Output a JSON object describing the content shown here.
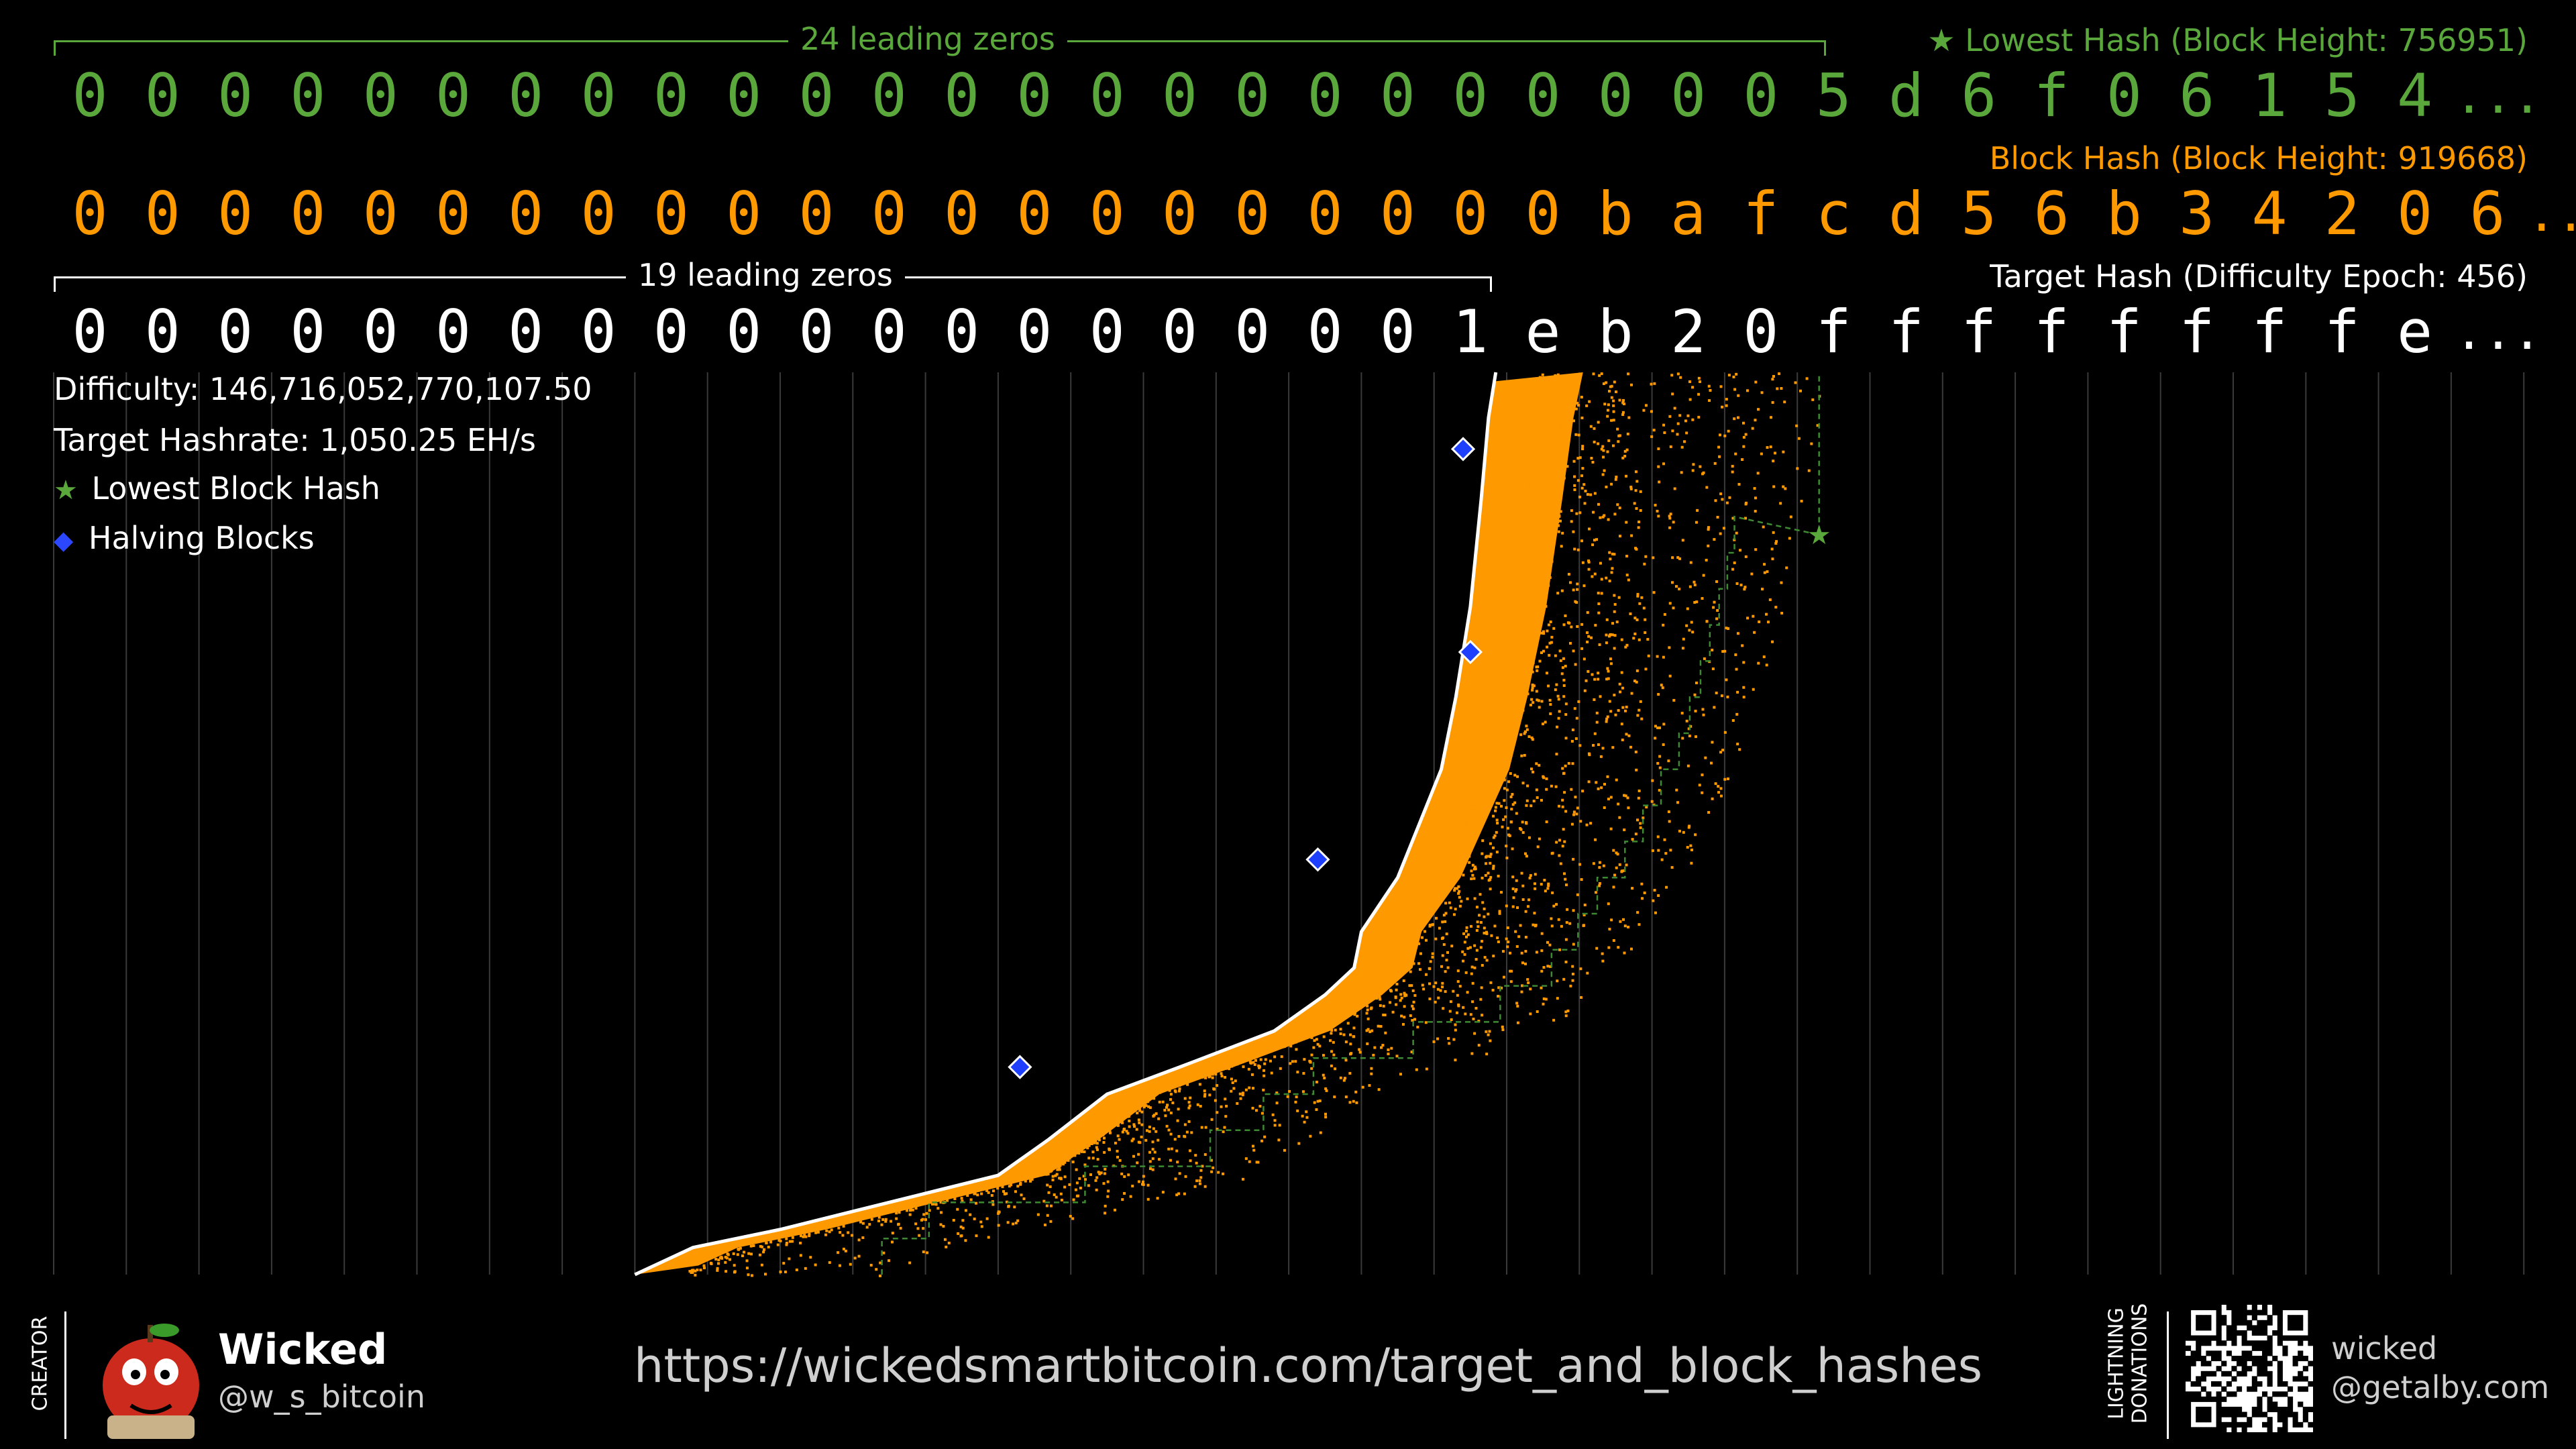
{
  "lowest_hash": {
    "caption": "★ Lowest Hash (Block Height: 756951)",
    "chars": [
      "0",
      "0",
      "0",
      "0",
      "0",
      "0",
      "0",
      "0",
      "0",
      "0",
      "0",
      "0",
      "0",
      "0",
      "0",
      "0",
      "0",
      "0",
      "0",
      "0",
      "0",
      "0",
      "0",
      "0",
      "5",
      "d",
      "6",
      "f",
      "0",
      "6",
      "1",
      "5",
      "4",
      "..."
    ],
    "bracket_label": "24 leading zeros",
    "color": "#5aa83c"
  },
  "block_hash": {
    "caption": "Block Hash (Block Height: 919668)",
    "chars": [
      "0",
      "0",
      "0",
      "0",
      "0",
      "0",
      "0",
      "0",
      "0",
      "0",
      "0",
      "0",
      "0",
      "0",
      "0",
      "0",
      "0",
      "0",
      "0",
      "0",
      "0",
      "b",
      "a",
      "f",
      "c",
      "d",
      "5",
      "6",
      "b",
      "3",
      "4",
      "2",
      "0",
      "6",
      "..."
    ],
    "color": "#ff9900"
  },
  "target_hash": {
    "caption": "Target Hash (Difficulty Epoch: 456)",
    "chars": [
      "0",
      "0",
      "0",
      "0",
      "0",
      "0",
      "0",
      "0",
      "0",
      "0",
      "0",
      "0",
      "0",
      "0",
      "0",
      "0",
      "0",
      "0",
      "0",
      "1",
      "e",
      "b",
      "2",
      "0",
      "f",
      "f",
      "f",
      "f",
      "f",
      "f",
      "f",
      "f",
      "e",
      "..."
    ],
    "bracket_label": "19 leading zeros",
    "color": "#ffffff"
  },
  "info": {
    "difficulty": "Difficulty: 146,716,052,770,107.50",
    "hashrate": "Target Hashrate: 1,050.25 EH/s"
  },
  "chart_data": {
    "type": "scatter",
    "series": [
      {
        "name": "Lowest Block Hash",
        "marker": "star",
        "color": "#5aa83c",
        "points": [
          {
            "leading_zeros": 24.3,
            "position": 0.18
          }
        ]
      },
      {
        "name": "Halving Blocks",
        "marker": "diamond",
        "color": "#1f3fff",
        "points": [
          {
            "leading_zeros": 13.3,
            "position": 0.77
          },
          {
            "leading_zeros": 17.4,
            "position": 0.54
          },
          {
            "leading_zeros": 19.5,
            "position": 0.31
          },
          {
            "leading_zeros": 19.4,
            "position": 0.085
          }
        ]
      }
    ],
    "target_envelope": [
      [
        8,
        1.0
      ],
      [
        8.8,
        0.97
      ],
      [
        10,
        0.95
      ],
      [
        11,
        0.93
      ],
      [
        12,
        0.91
      ],
      [
        13,
        0.89
      ],
      [
        13.7,
        0.85
      ],
      [
        14.5,
        0.8
      ],
      [
        15.5,
        0.77
      ],
      [
        16.8,
        0.73
      ],
      [
        17.5,
        0.69
      ],
      [
        17.9,
        0.66
      ],
      [
        18,
        0.62
      ],
      [
        18.5,
        0.56
      ],
      [
        18.8,
        0.5
      ],
      [
        19.1,
        0.44
      ],
      [
        19.3,
        0.36
      ],
      [
        19.5,
        0.26
      ],
      [
        19.65,
        0.14
      ],
      [
        19.75,
        0.05
      ],
      [
        19.85,
        0
      ]
    ],
    "legend": [
      "★ Lowest Block Hash",
      "◆ Halving Blocks"
    ],
    "grid": true,
    "colors": {
      "hash_cloud": "#ff9900",
      "target_line": "#ffffff",
      "lowest_line": "#3d8a32",
      "grid": "#3a3a3a"
    }
  },
  "footer": {
    "creator_label": "CREATOR",
    "creator_name": "Wicked",
    "creator_handle": "@w_s_bitcoin",
    "url": "https://wickedsmartbitcoin.com/target_and_block_hashes",
    "donations_label_1": "LIGHTNING",
    "donations_label_2": "DONATIONS",
    "lightning_user": "wicked",
    "lightning_domain": "@getalby.com"
  }
}
